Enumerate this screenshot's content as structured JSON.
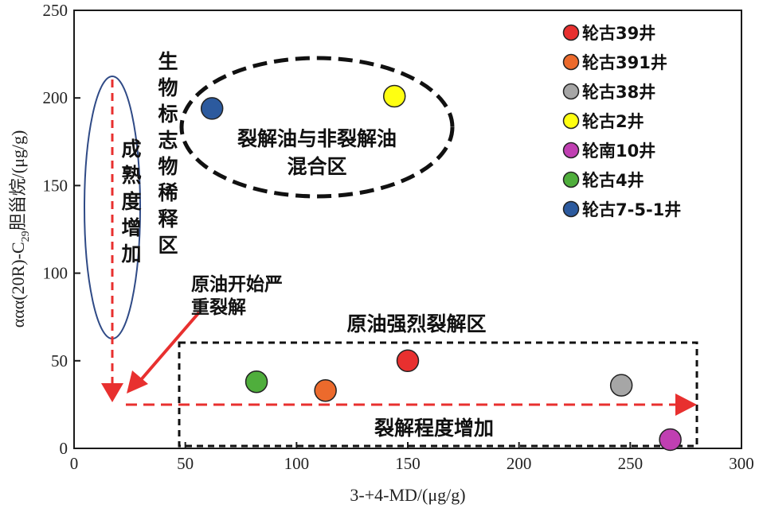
{
  "chart_data": {
    "type": "scatter",
    "xlabel": "3-+4-MD/(μg/g)",
    "ylabel_parts": [
      "αα",
      "α",
      "(20R)-C",
      "29",
      "胆甾烷/(μg/g)"
    ],
    "xlim": [
      0,
      300
    ],
    "ylim": [
      0,
      250
    ],
    "xticks": [
      0,
      50,
      100,
      150,
      200,
      250,
      300
    ],
    "yticks": [
      0,
      50,
      100,
      150,
      200,
      250
    ],
    "grid": false,
    "legend_position": "top-right",
    "series": [
      {
        "name": "轮古39井",
        "color": "#e8302f",
        "points": [
          [
            150,
            50
          ]
        ]
      },
      {
        "name": "轮古391井",
        "color": "#ec6a2c",
        "points": [
          [
            113,
            33
          ]
        ]
      },
      {
        "name": "轮古38井",
        "color": "#a6a6a6",
        "points": [
          [
            246,
            36
          ]
        ]
      },
      {
        "name": "轮古2井",
        "color": "#ffff11",
        "points": [
          [
            144,
            201
          ]
        ]
      },
      {
        "name": "轮南10井",
        "color": "#c03fb2",
        "points": [
          [
            268,
            5
          ]
        ]
      },
      {
        "name": "轮古4井",
        "color": "#4fae3c",
        "points": [
          [
            82,
            38
          ]
        ]
      },
      {
        "name": "轮古7-5-1井",
        "color": "#2c5a9e",
        "points": [
          [
            62,
            194
          ]
        ]
      }
    ],
    "annotations": {
      "mixed_zone": [
        "裂解油与非裂解油",
        "混合区"
      ],
      "biomarker_dilution_zone": "生物标志物稀释区",
      "maturity_increase": "成熟度增加",
      "severe_cracking_onset": [
        "原油开始严",
        "重裂解"
      ],
      "strong_cracking_zone": "原油强烈裂解区",
      "cracking_increase": "裂解程度增加"
    }
  },
  "colors": {
    "arrow_red": "#e8302f",
    "ellipse_blue": "#2f4a86",
    "frame": "#1a1a1a"
  }
}
